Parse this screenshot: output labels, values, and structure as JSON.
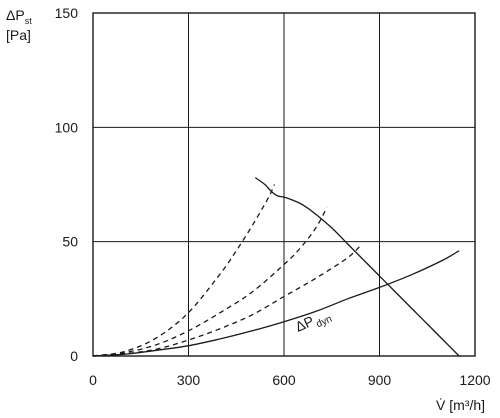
{
  "chart_data": {
    "type": "line",
    "ylabel_symbol": "ΔP",
    "ylabel_sub": "st",
    "ylabel_unit": "[Pa]",
    "xlabel": "V̇ [m³/h]",
    "xlim": [
      0,
      1200
    ],
    "ylim": [
      0,
      150
    ],
    "xticks": [
      0,
      300,
      600,
      900,
      1200
    ],
    "xtick_labels": [
      "0",
      "300",
      "600",
      "900",
      "1200"
    ],
    "yticks": [
      0,
      50,
      100,
      150
    ],
    "ytick_labels": [
      "0",
      "50",
      "100",
      "150"
    ],
    "grid": true,
    "annotation": {
      "symbol": "ΔP",
      "sub": "dyn"
    },
    "series": [
      {
        "style": "solid",
        "x": [
          510,
          540,
          560,
          580,
          600,
          630,
          660,
          700,
          750,
          800,
          850,
          900,
          950,
          1000,
          1050,
          1100,
          1150
        ],
        "y": [
          78,
          75,
          72,
          70,
          69.5,
          68,
          66,
          62,
          56,
          49,
          42,
          35,
          28,
          21,
          14,
          7,
          0
        ]
      },
      {
        "style": "solid",
        "x": [
          0,
          100,
          200,
          300,
          400,
          500,
          600,
          700,
          800,
          900,
          1000,
          1100,
          1150
        ],
        "y": [
          0,
          0.8,
          2.5,
          4.5,
          7.5,
          11,
          15,
          19.5,
          25,
          30,
          35.5,
          42,
          46
        ]
      },
      {
        "style": "dashed",
        "x": [
          0,
          100,
          200,
          300,
          400,
          450,
          500,
          550,
          570
        ],
        "y": [
          0,
          2,
          8,
          19,
          36,
          46,
          57,
          69,
          75
        ]
      },
      {
        "style": "dashed",
        "x": [
          0,
          100,
          200,
          300,
          400,
          500,
          600,
          650,
          700,
          735
        ],
        "y": [
          0,
          1.5,
          5,
          11,
          19,
          28,
          40,
          47,
          56,
          65
        ]
      },
      {
        "style": "dashed",
        "x": [
          0,
          100,
          200,
          300,
          400,
          500,
          600,
          700,
          800,
          845
        ],
        "y": [
          0,
          1,
          3,
          7,
          12,
          18,
          26,
          34,
          43,
          49
        ]
      }
    ]
  }
}
